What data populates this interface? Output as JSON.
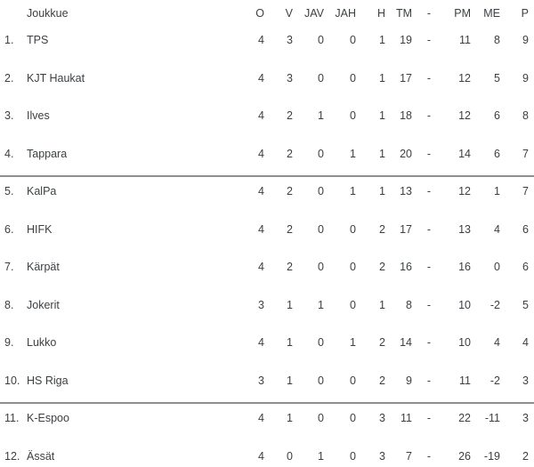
{
  "chart_data": {
    "type": "table",
    "columns": [
      "Joukkue",
      "O",
      "V",
      "JAV",
      "JAH",
      "H",
      "TM",
      "-",
      "PM",
      "ME",
      "P"
    ],
    "rows": [
      {
        "rank": "1.",
        "team": "TPS",
        "o": "4",
        "v": "3",
        "jav": "0",
        "jah": "0",
        "h": "1",
        "tm": "19",
        "dash": "-",
        "pm": "11",
        "me": "8",
        "p": "9"
      },
      {
        "rank": "2.",
        "team": "KJT Haukat",
        "o": "4",
        "v": "3",
        "jav": "0",
        "jah": "0",
        "h": "1",
        "tm": "17",
        "dash": "-",
        "pm": "12",
        "me": "5",
        "p": "9"
      },
      {
        "rank": "3.",
        "team": "Ilves",
        "o": "4",
        "v": "2",
        "jav": "1",
        "jah": "0",
        "h": "1",
        "tm": "18",
        "dash": "-",
        "pm": "12",
        "me": "6",
        "p": "8"
      },
      {
        "rank": "4.",
        "team": "Tappara",
        "o": "4",
        "v": "2",
        "jav": "0",
        "jah": "1",
        "h": "1",
        "tm": "20",
        "dash": "-",
        "pm": "14",
        "me": "6",
        "p": "7"
      },
      {
        "rank": "5.",
        "team": "KalPa",
        "o": "4",
        "v": "2",
        "jav": "0",
        "jah": "1",
        "h": "1",
        "tm": "13",
        "dash": "-",
        "pm": "12",
        "me": "1",
        "p": "7"
      },
      {
        "rank": "6.",
        "team": "HIFK",
        "o": "4",
        "v": "2",
        "jav": "0",
        "jah": "0",
        "h": "2",
        "tm": "17",
        "dash": "-",
        "pm": "13",
        "me": "4",
        "p": "6"
      },
      {
        "rank": "7.",
        "team": "Kärpät",
        "o": "4",
        "v": "2",
        "jav": "0",
        "jah": "0",
        "h": "2",
        "tm": "16",
        "dash": "-",
        "pm": "16",
        "me": "0",
        "p": "6"
      },
      {
        "rank": "8.",
        "team": "Jokerit",
        "o": "3",
        "v": "1",
        "jav": "1",
        "jah": "0",
        "h": "1",
        "tm": "8",
        "dash": "-",
        "pm": "10",
        "me": "-2",
        "p": "5"
      },
      {
        "rank": "9.",
        "team": "Lukko",
        "o": "4",
        "v": "1",
        "jav": "0",
        "jah": "1",
        "h": "2",
        "tm": "14",
        "dash": "-",
        "pm": "10",
        "me": "4",
        "p": "4"
      },
      {
        "rank": "10.",
        "team": "HS Riga",
        "o": "3",
        "v": "1",
        "jav": "0",
        "jah": "0",
        "h": "2",
        "tm": "9",
        "dash": "-",
        "pm": "11",
        "me": "-2",
        "p": "3"
      },
      {
        "rank": "11.",
        "team": "K-Espoo",
        "o": "4",
        "v": "1",
        "jav": "0",
        "jah": "0",
        "h": "3",
        "tm": "11",
        "dash": "-",
        "pm": "22",
        "me": "-11",
        "p": "3"
      },
      {
        "rank": "12.",
        "team": "Ässät",
        "o": "4",
        "v": "0",
        "jav": "1",
        "jah": "0",
        "h": "3",
        "tm": "7",
        "dash": "-",
        "pm": "26",
        "me": "-19",
        "p": "2"
      }
    ],
    "divider_after_rows": [
      4,
      10
    ],
    "layout": {
      "grid": "off",
      "numeric_alignment": "right"
    }
  },
  "colors": {
    "text": "#3c4043",
    "divider": "#8f8f8f",
    "background": "#ffffff"
  }
}
